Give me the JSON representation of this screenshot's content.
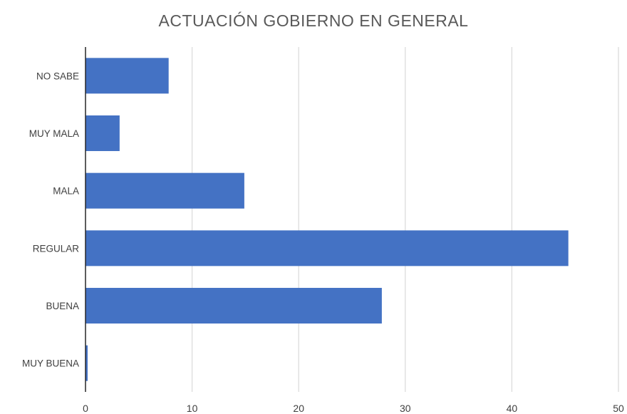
{
  "chart_data": {
    "type": "bar",
    "orientation": "horizontal",
    "title": "ACTUACIÓN GOBIERNO EN GENERAL",
    "categories": [
      "NO SABE",
      "MUY MALA",
      "MALA",
      "REGULAR",
      "BUENA",
      "MUY BUENA"
    ],
    "values": [
      7.8,
      3.2,
      14.9,
      45.3,
      27.8,
      0.2
    ],
    "xlim": [
      0,
      50
    ],
    "xticks": [
      0,
      10,
      20,
      30,
      40,
      50
    ],
    "xlabel": "",
    "ylabel": "",
    "grid": "vertical",
    "legend": "none",
    "bar_color": "#4472C4",
    "grid_color": "#D9D9D9",
    "axis_color": "#262626",
    "text_color": "#404040"
  }
}
